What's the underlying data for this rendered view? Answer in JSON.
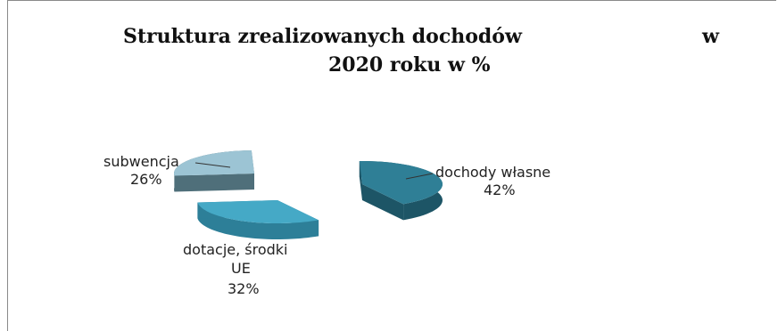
{
  "chart_data": {
    "type": "pie",
    "title_line1": "Struktura zrealizowanych dochodów",
    "title_w": "w",
    "title_line2": "2020 roku w %",
    "slices": [
      {
        "label": "dochody własne",
        "value": 42,
        "value_text": "42%",
        "color": "#2f7f96",
        "dark": "#1d5566"
      },
      {
        "label": "dotacje, środki",
        "label2": "UE",
        "value": 32,
        "value_text": "32%",
        "color": "#45a9c6",
        "dark": "#2d7f98"
      },
      {
        "label": "subwencja",
        "value": 26,
        "value_text": "26%",
        "color": "#9cc4d4",
        "dark": "#4f6f7a"
      }
    ]
  }
}
